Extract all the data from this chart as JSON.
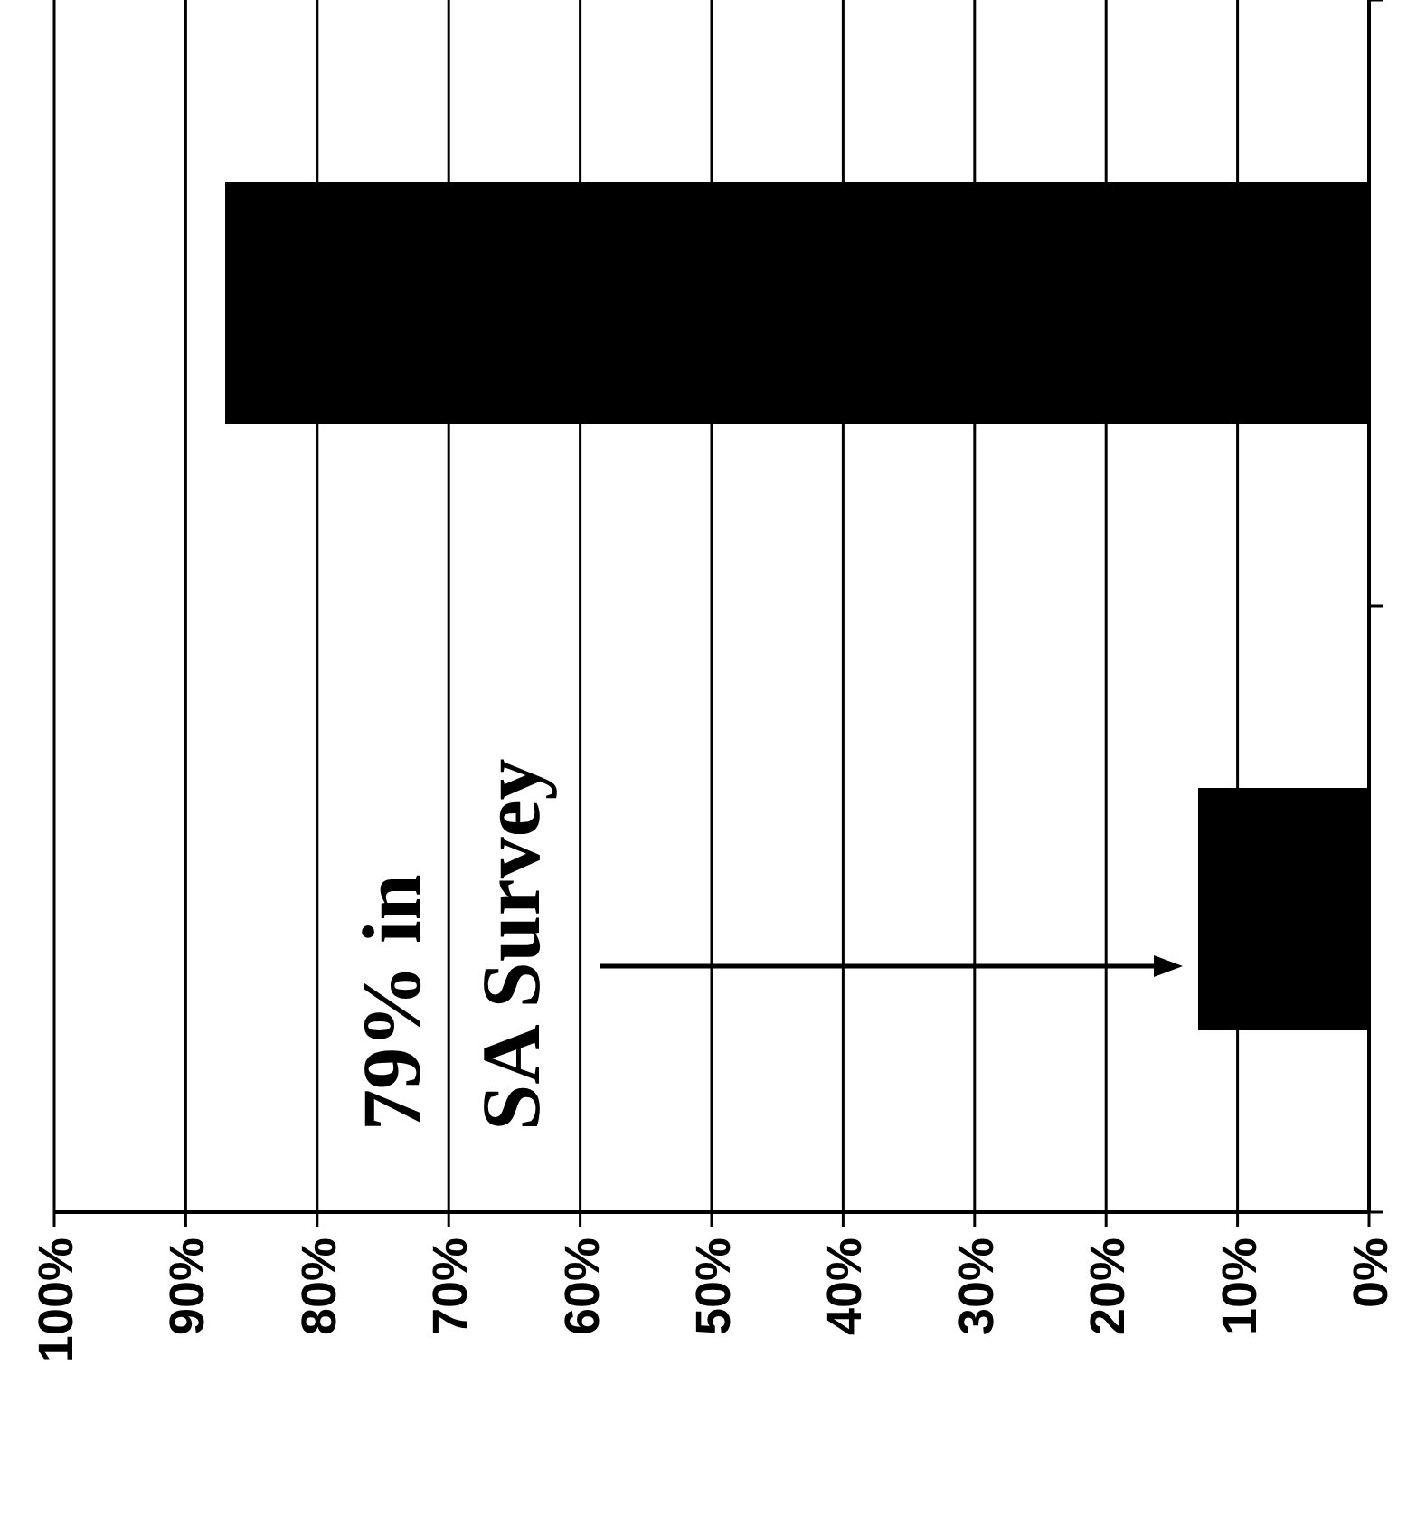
{
  "chart_data": {
    "type": "bar",
    "orientation": "horizontal",
    "categories": [
      null,
      null
    ],
    "values": [
      87,
      13
    ],
    "color": "#000000",
    "xlim": [
      100,
      0
    ],
    "xticks": [
      {
        "value": 100,
        "label": "100%"
      },
      {
        "value": 90,
        "label": "90%"
      },
      {
        "value": 80,
        "label": "80%"
      },
      {
        "value": 70,
        "label": "70%"
      },
      {
        "value": 60,
        "label": "60%"
      },
      {
        "value": 50,
        "label": "50%"
      },
      {
        "value": 40,
        "label": "40%"
      },
      {
        "value": 30,
        "label": "30%"
      },
      {
        "value": 20,
        "label": "20%"
      },
      {
        "value": 10,
        "label": "10%"
      },
      {
        "value": 0,
        "label": "0%"
      }
    ],
    "grid": "x",
    "annotations": [
      "79% in\nSA Survey"
    ]
  }
}
